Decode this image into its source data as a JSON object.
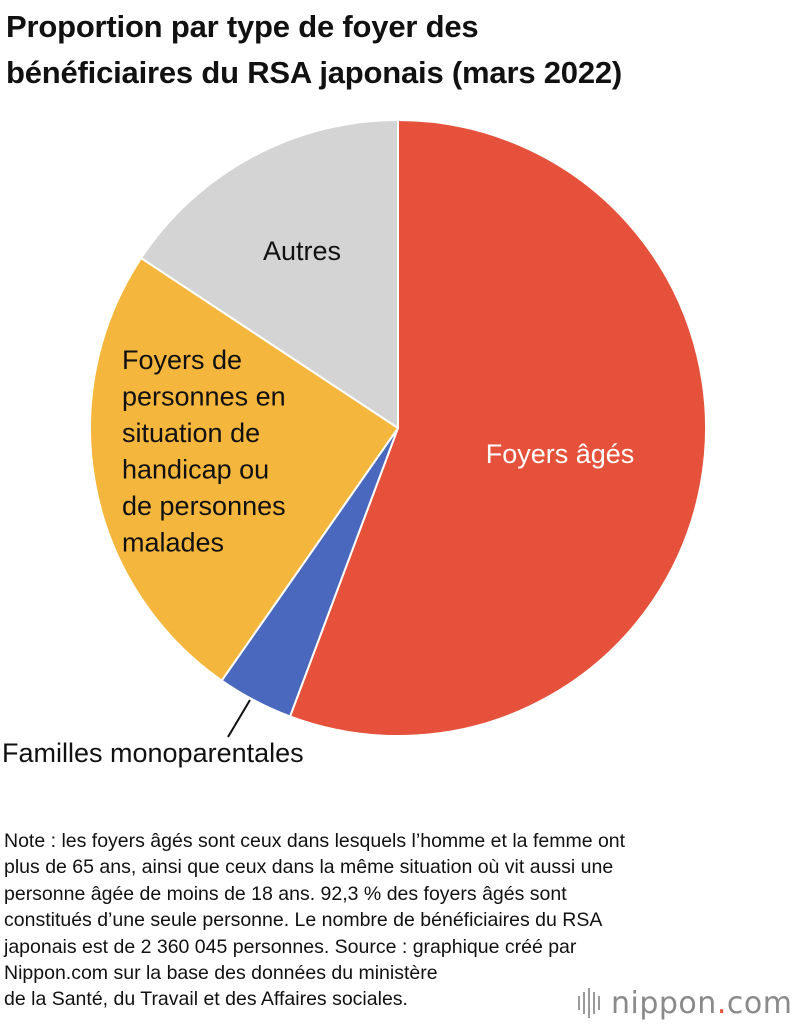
{
  "title_lines": [
    "Proportion par type de foyer des",
    "bénéficiaires du RSA japonais (mars 2022)"
  ],
  "chart_data": {
    "type": "pie",
    "title": "Proportion par type de foyer des bénéficiaires du RSA japonais (mars 2022)",
    "start_angle_deg": 0,
    "direction": "clockwise",
    "slices": [
      {
        "label": "Foyers âgés",
        "label_lines": [
          "Foyers âgés"
        ],
        "value": 55.7,
        "color": "#e5513b",
        "label_color": "#ffffff"
      },
      {
        "label": "Familles monoparentales",
        "label_lines": [
          "Familles monoparentales"
        ],
        "value": 4.0,
        "color": "#4a68bd",
        "label_color": "#111111"
      },
      {
        "label": "Foyers de personnes en situation de handicap ou de personnes malades",
        "label_lines": [
          "Foyers de",
          "personnes en",
          "situation de",
          "handicap ou",
          "de personnes",
          "malades"
        ],
        "value": 24.6,
        "color": "#f5b63d",
        "label_color": "#111111"
      },
      {
        "label": "Autres",
        "label_lines": [
          "Autres"
        ],
        "value": 15.7,
        "color": "#d4d4d4",
        "label_color": "#111111"
      }
    ]
  },
  "note_lines": [
    "Note : les foyers âgés sont ceux dans lesquels l’homme et la femme ont",
    "plus de 65 ans, ainsi que ceux dans la même situation où vit aussi une",
    "personne âgée de moins de 18 ans. 92,3 % des foyers âgés sont",
    "constitués d’une seule personne. Le nombre de bénéficiaires du RSA",
    "japonais est de 2 360 045 personnes. Source : graphique créé par",
    "Nippon.com sur la base des données du ministère",
    "de la Santé, du Travail et des Affaires sociales."
  ],
  "logo": {
    "name": "nippon",
    "dot": ".",
    "suffix": "com",
    "icon": "sound-bars-icon"
  }
}
